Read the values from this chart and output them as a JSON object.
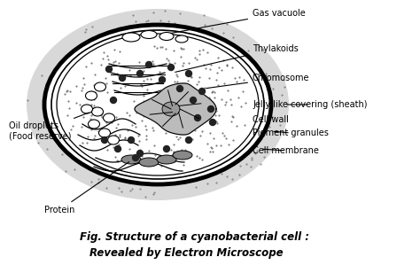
{
  "title_line1": "Fig. Structure of a cyanobacterial cell :",
  "title_line2": "Revealed by Electron Microscope",
  "bg_color": "#FFFFFF",
  "labels": {
    "gas_vacuole": "Gas vacuole",
    "thylakoids": "Thylakoids",
    "chromosome": "Chromosome",
    "jelly": "Jelly like covering (sheath)",
    "cell_wall": "Cell wall",
    "pigment": "Pigment granules",
    "cell_membrane": "Cell membrane",
    "oil_droplets": "Oil droplets\n(Food reserve)",
    "protein": "Protein"
  },
  "figsize": [
    4.74,
    2.99
  ],
  "dpi": 100
}
